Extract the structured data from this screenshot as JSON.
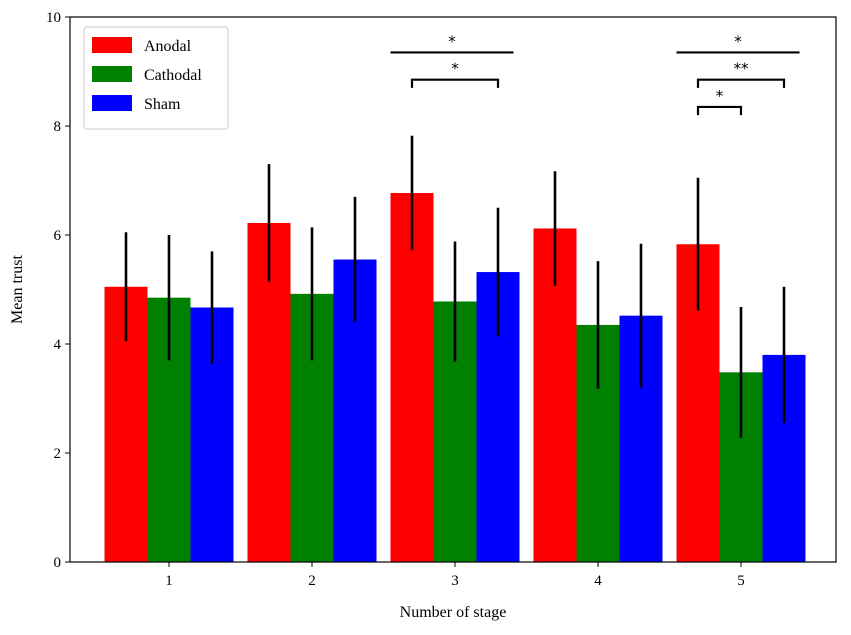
{
  "chart_data": {
    "type": "bar",
    "title": "",
    "xlabel": "Number of stage",
    "ylabel": "Mean trust",
    "categories": [
      "1",
      "2",
      "3",
      "4",
      "5"
    ],
    "ylim": [
      0,
      10
    ],
    "yticks": [
      0,
      2,
      4,
      6,
      8,
      10
    ],
    "grid": false,
    "legend_position": "top-left",
    "colors": {
      "Anodal": "#ff0000",
      "Cathodal": "#008000",
      "Sham": "#0000ff"
    },
    "series": [
      {
        "name": "Anodal",
        "values": [
          5.05,
          6.22,
          6.77,
          6.12,
          5.83
        ],
        "err": [
          1.0,
          1.08,
          1.05,
          1.05,
          1.22
        ]
      },
      {
        "name": "Cathodal",
        "values": [
          4.85,
          4.92,
          4.78,
          4.35,
          3.48
        ],
        "err": [
          1.15,
          1.22,
          1.1,
          1.17,
          1.2
        ]
      },
      {
        "name": "Sham",
        "values": [
          4.67,
          5.55,
          5.32,
          4.52,
          3.8
        ],
        "err": [
          1.03,
          1.15,
          1.18,
          1.32,
          1.25
        ]
      }
    ],
    "significance": [
      {
        "category": "3",
        "from": "Anodal",
        "to": "Sham",
        "label": "*",
        "y": 9.35,
        "drop": 0
      },
      {
        "category": "3",
        "from": "Anodal",
        "to": "Sham",
        "label": "*",
        "y": 8.85,
        "drop": 0.15
      },
      {
        "category": "5",
        "from": "Anodal",
        "to": "Sham",
        "label": "*",
        "y": 9.35,
        "drop": 0
      },
      {
        "category": "5",
        "from": "Anodal",
        "to": "Sham",
        "label": "**",
        "y": 8.85,
        "drop": 0.15
      },
      {
        "category": "5",
        "from": "Anodal",
        "to": "Cathodal",
        "label": "*",
        "y": 8.35,
        "drop": 0.15
      }
    ]
  }
}
